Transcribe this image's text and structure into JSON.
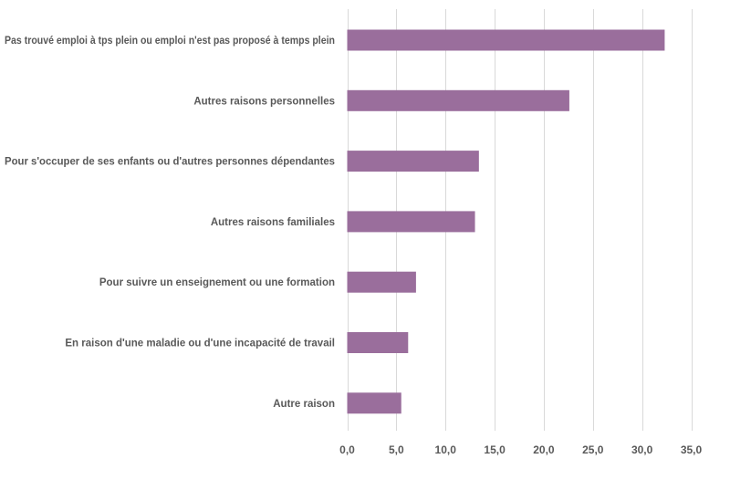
{
  "chart_data": {
    "type": "bar",
    "orientation": "horizontal",
    "categories": [
      "Pas trouvé emploi à tps plein ou emploi n'est pas proposé à temps plein",
      "Autres raisons personnelles",
      "Pour s'occuper de ses enfants ou d'autres personnes dépendantes",
      "Autres raisons familiales",
      "Pour suivre un enseignement ou une formation",
      "En raison d'une maladie ou d'une incapacité de travail",
      "Autre raison"
    ],
    "values": [
      32.3,
      22.6,
      13.4,
      13.0,
      7.0,
      6.2,
      5.5
    ],
    "xlim": [
      0,
      35
    ],
    "xticks": [
      0,
      5,
      10,
      15,
      20,
      25,
      30,
      35
    ],
    "xtick_labels": [
      "0,0",
      "5,0",
      "10,0",
      "15,0",
      "20,0",
      "25,0",
      "30,0",
      "35,0"
    ],
    "grid": "vertical",
    "legend": "none",
    "colors": {
      "bar": "#9a6e9c",
      "grid": "#d9d9d9",
      "text": "#595959"
    }
  }
}
